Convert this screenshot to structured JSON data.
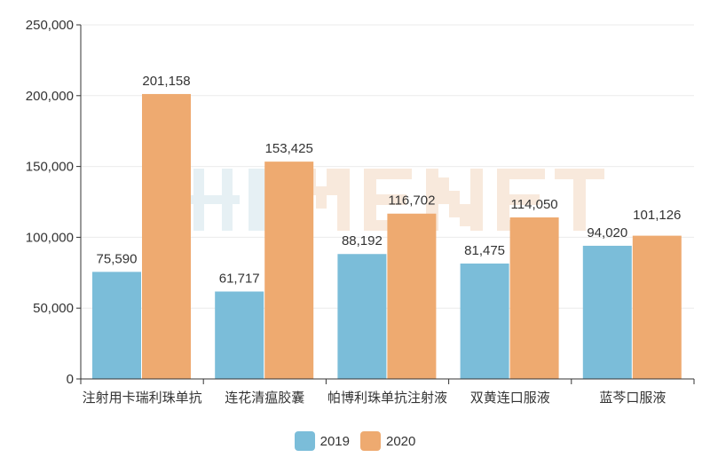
{
  "watermark": "米内网 MENET",
  "chart_data": {
    "type": "bar",
    "categories": [
      "注射用卡瑞利珠单抗",
      "连花清瘟胶囊",
      "帕博利珠单抗注射液",
      "双黄连口服液",
      "蓝芩口服液"
    ],
    "series": [
      {
        "name": "2019",
        "values": [
          75590,
          61717,
          88192,
          81475,
          94020
        ],
        "color": "#7bbdd9"
      },
      {
        "name": "2020",
        "values": [
          201158,
          153425,
          116702,
          114050,
          101126
        ],
        "color": "#eeaa70"
      }
    ],
    "data_labels": [
      [
        "75,590",
        "61,717",
        "88,192",
        "81,475",
        "94,020"
      ],
      [
        "201,158",
        "153,425",
        "116,702",
        "114,050",
        "101,126"
      ]
    ],
    "yticks": [
      "0",
      "50,000",
      "100,000",
      "150,000",
      "200,000",
      "250,000"
    ],
    "ylim": [
      0,
      250000
    ],
    "grid": true,
    "legend": "bottom"
  }
}
